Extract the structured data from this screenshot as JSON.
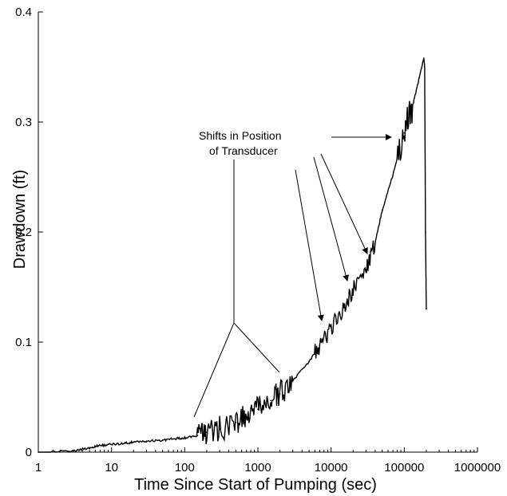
{
  "chart_data": {
    "type": "line",
    "x_scale": "log",
    "xlim": [
      1,
      1000000
    ],
    "ylim": [
      0,
      0.4
    ],
    "xlabel": "Time Since Start of Pumping (sec)",
    "ylabel": "Drawdown  (ft)",
    "x_tick_labels": [
      "1",
      "10",
      "100",
      "1000",
      "10000",
      "100000",
      "1000000"
    ],
    "y_tick_labels": [
      "0",
      "0.1",
      "0.2",
      "0.3",
      "0.4"
    ],
    "grid": false,
    "annotations": [
      {
        "text_lines": [
          "Shifts in Position",
          "of Transducer"
        ]
      }
    ],
    "series": [
      {
        "x": [
          1,
          3,
          5,
          7,
          10,
          15,
          20,
          30,
          50,
          70,
          100,
          150,
          200,
          300,
          500,
          700,
          1000,
          1500,
          2000,
          3000,
          5000,
          7000,
          10000,
          15000,
          20000,
          30000,
          40000,
          50000,
          70000,
          100000,
          130000,
          160000,
          185000,
          190000,
          195000,
          200000
        ],
        "y": [
          0,
          0.001,
          0.004,
          0.006,
          0.007,
          0.008,
          0.009,
          0.01,
          0.011,
          0.012,
          0.013,
          0.015,
          0.018,
          0.021,
          0.027,
          0.032,
          0.039,
          0.047,
          0.053,
          0.065,
          0.082,
          0.097,
          0.113,
          0.132,
          0.148,
          0.166,
          0.19,
          0.22,
          0.252,
          0.29,
          0.315,
          0.34,
          0.358,
          0.35,
          0.2,
          0.13
        ]
      }
    ]
  }
}
